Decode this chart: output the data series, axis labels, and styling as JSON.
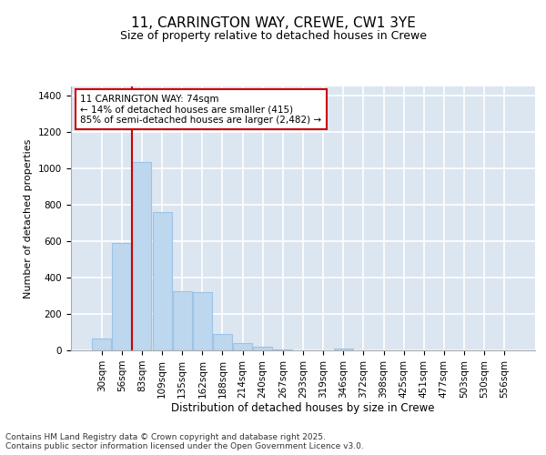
{
  "title1": "11, CARRINGTON WAY, CREWE, CW1 3YE",
  "title2": "Size of property relative to detached houses in Crewe",
  "xlabel": "Distribution of detached houses by size in Crewe",
  "ylabel": "Number of detached properties",
  "categories": [
    "30sqm",
    "56sqm",
    "83sqm",
    "109sqm",
    "135sqm",
    "162sqm",
    "188sqm",
    "214sqm",
    "240sqm",
    "267sqm",
    "293sqm",
    "319sqm",
    "346sqm",
    "372sqm",
    "398sqm",
    "425sqm",
    "451sqm",
    "477sqm",
    "503sqm",
    "530sqm",
    "556sqm"
  ],
  "values": [
    65,
    590,
    1035,
    760,
    325,
    320,
    90,
    40,
    20,
    5,
    0,
    0,
    12,
    0,
    0,
    0,
    0,
    0,
    0,
    0,
    0
  ],
  "bar_color": "#bdd7ee",
  "bar_edge_color": "#9dc3e6",
  "plot_bg_color": "#dce6f1",
  "grid_color": "#ffffff",
  "vline_color": "#cc0000",
  "vline_x_pos": 1.5,
  "annotation_text": "11 CARRINGTON WAY: 74sqm\n← 14% of detached houses are smaller (415)\n85% of semi-detached houses are larger (2,482) →",
  "annotation_box_facecolor": "#ffffff",
  "annotation_box_edgecolor": "#cc0000",
  "footer_text": "Contains HM Land Registry data © Crown copyright and database right 2025.\nContains public sector information licensed under the Open Government Licence v3.0.",
  "ylim": [
    0,
    1450
  ],
  "yticks": [
    0,
    200,
    400,
    600,
    800,
    1000,
    1200,
    1400
  ],
  "fig_bg_color": "#ffffff",
  "title1_fontsize": 11,
  "title2_fontsize": 9,
  "ylabel_fontsize": 8,
  "xlabel_fontsize": 8.5,
  "tick_fontsize": 7.5,
  "footer_fontsize": 6.5,
  "annot_fontsize": 7.5
}
